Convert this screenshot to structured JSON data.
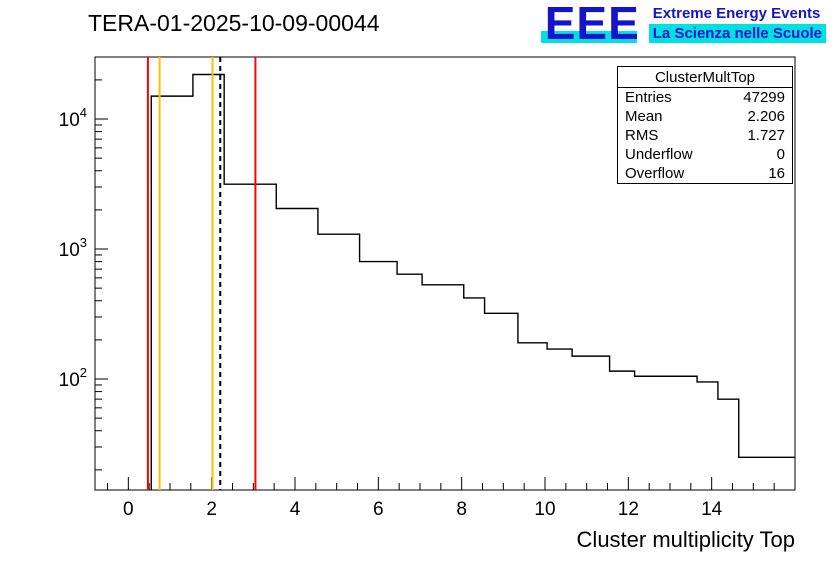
{
  "chart_data": {
    "type": "bar",
    "subtype": "step-histogram-log-y",
    "title": "TERA-01-2025-10-09-00044",
    "xlabel": "Cluster multiplicity Top",
    "ylabel": "",
    "grid": false,
    "legend": "none",
    "ylog": true,
    "xlim": [
      -0.8,
      16
    ],
    "ylim": [
      14,
      30000
    ],
    "x_major_ticks": [
      0,
      2,
      4,
      6,
      8,
      10,
      12,
      14
    ],
    "x_minor_step": 0.5,
    "y_major_ticks": [
      {
        "value": 100,
        "base": "10",
        "exp": "2"
      },
      {
        "value": 1000,
        "base": "10",
        "exp": "3"
      },
      {
        "value": 10000,
        "base": "10",
        "exp": "4"
      }
    ],
    "bins": [
      {
        "x0": 0.55,
        "x1": 1.55,
        "count": 15000
      },
      {
        "x0": 1.55,
        "x1": 2.3,
        "count": 22000
      },
      {
        "x0": 2.3,
        "x1": 3.55,
        "count": 3150
      },
      {
        "x0": 3.55,
        "x1": 4.55,
        "count": 2050
      },
      {
        "x0": 4.55,
        "x1": 5.55,
        "count": 1300
      },
      {
        "x0": 5.55,
        "x1": 6.45,
        "count": 800
      },
      {
        "x0": 6.45,
        "x1": 7.05,
        "count": 640
      },
      {
        "x0": 7.05,
        "x1": 8.05,
        "count": 530
      },
      {
        "x0": 8.05,
        "x1": 8.55,
        "count": 420
      },
      {
        "x0": 8.55,
        "x1": 9.35,
        "count": 320
      },
      {
        "x0": 9.35,
        "x1": 10.05,
        "count": 190
      },
      {
        "x0": 10.05,
        "x1": 10.65,
        "count": 170
      },
      {
        "x0": 10.65,
        "x1": 11.55,
        "count": 150
      },
      {
        "x0": 11.55,
        "x1": 12.15,
        "count": 115
      },
      {
        "x0": 12.15,
        "x1": 13.65,
        "count": 105
      },
      {
        "x0": 13.65,
        "x1": 14.15,
        "count": 95
      },
      {
        "x0": 14.15,
        "x1": 14.65,
        "count": 70
      },
      {
        "x0": 14.65,
        "x1": 16.0,
        "count": 25
      }
    ],
    "marker_lines": [
      {
        "x": 0.47,
        "color": "#ff0000",
        "style": "solid",
        "name": "cut-line-red-low"
      },
      {
        "x": 0.75,
        "color": "#ffbf00",
        "style": "solid",
        "name": "threshold-line-yellow-low"
      },
      {
        "x": 2.02,
        "color": "#ffbf00",
        "style": "solid",
        "name": "threshold-line-yellow-high"
      },
      {
        "x": 2.206,
        "color": "#000000",
        "style": "dashed",
        "name": "mean-dashed-line"
      },
      {
        "x": 3.05,
        "color": "#ff0000",
        "style": "solid",
        "name": "cut-line-red-high"
      }
    ]
  },
  "stats_box": {
    "title": "ClusterMultTop",
    "rows": [
      {
        "label": "Entries",
        "value": "47299"
      },
      {
        "label": "Mean",
        "value": "2.206"
      },
      {
        "label": "RMS",
        "value": "1.727"
      },
      {
        "label": "Underflow",
        "value": "0"
      },
      {
        "label": "Overflow",
        "value": "16"
      }
    ]
  },
  "logo": {
    "text": "EEE",
    "line1": "Extreme Energy Events",
    "line2": "La Scienza nelle Scuole"
  },
  "colors": {
    "background": "#ffffff",
    "frame": "#000000",
    "hist_line": "#000000",
    "marker_red": "#ff0000",
    "marker_yellow": "#ffbf00",
    "mean_dash": "#000000",
    "logo_blue": "#1414cc",
    "logo_cyan": "#00e0e0"
  }
}
